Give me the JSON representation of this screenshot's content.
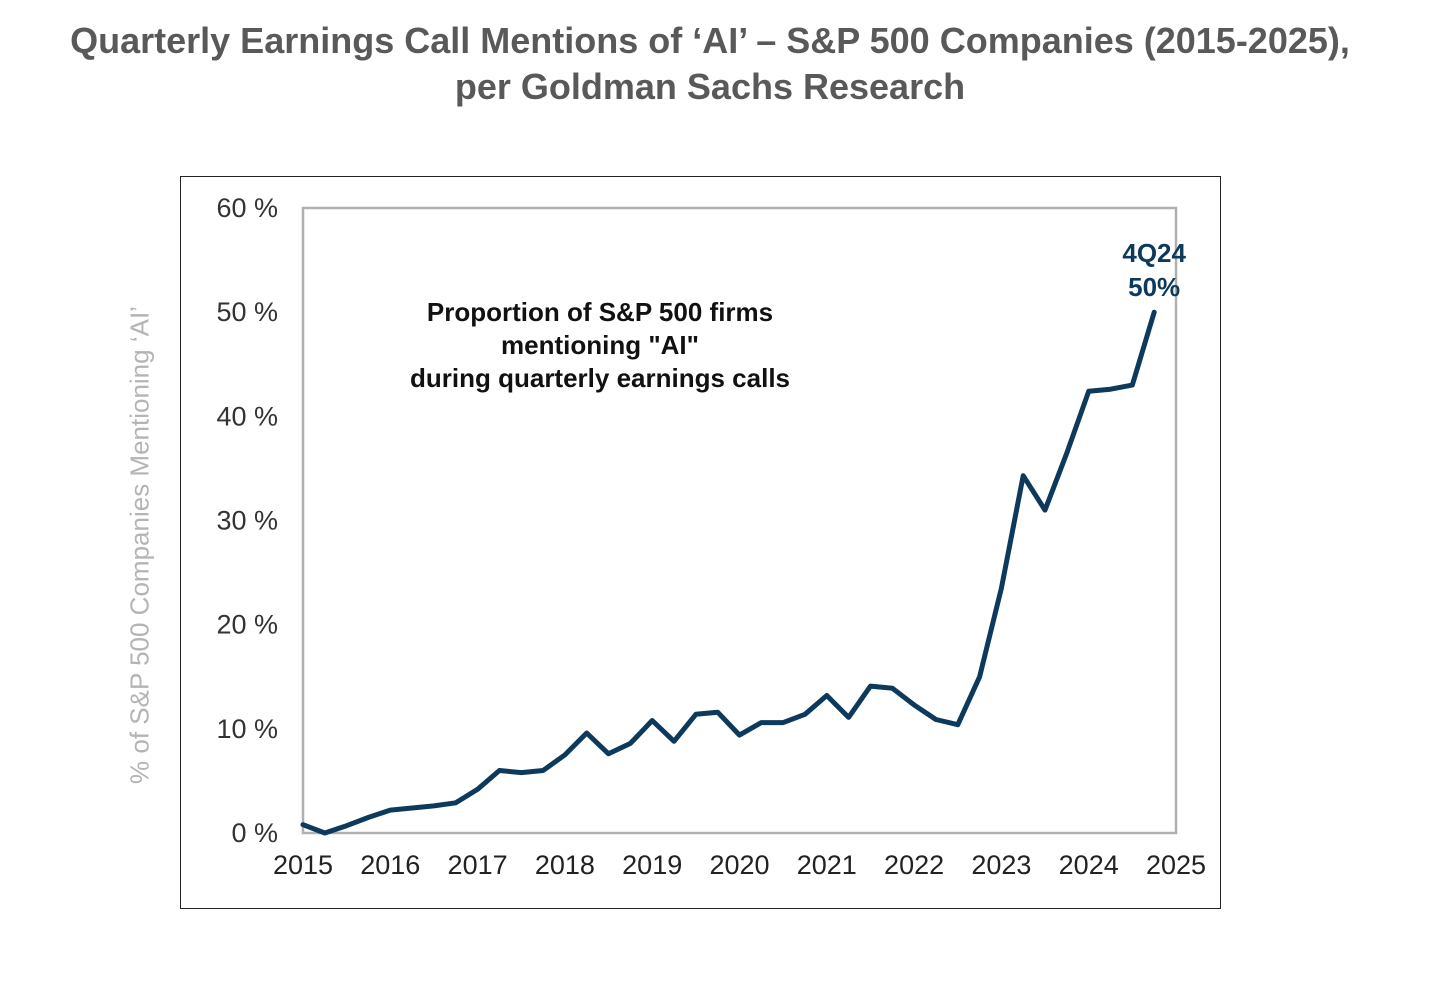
{
  "header": {
    "title_line1": "Quarterly Earnings Call Mentions of ‘AI’ – S&P 500 Companies (2015-2025),",
    "title_line2": "per Goldman Sachs Research"
  },
  "chart_data": {
    "type": "line",
    "ylabel": "% of S&P 500 Companies Mentioning ‘AI’",
    "xlabel": "",
    "xlim": [
      2015,
      2025
    ],
    "ylim": [
      0,
      60
    ],
    "x_ticks": [
      "2015",
      "2016",
      "2017",
      "2018",
      "2019",
      "2020",
      "2021",
      "2022",
      "2023",
      "2024",
      "2025"
    ],
    "y_ticks": [
      "0 %",
      "10 %",
      "20 %",
      "30 %",
      "40 %",
      "50 %",
      "60 %"
    ],
    "grid": false,
    "annotation": {
      "lines": [
        "Proportion of S&P 500 firms",
        "mentioning \"AI\"",
        "during quarterly earnings calls"
      ]
    },
    "point_label": {
      "label": "4Q24",
      "value_text": "50%"
    },
    "series": [
      {
        "color": "#0d3a5c",
        "x": [
          2015.0,
          2015.25,
          2015.5,
          2015.75,
          2016.0,
          2016.25,
          2016.5,
          2016.75,
          2017.0,
          2017.25,
          2017.5,
          2017.75,
          2018.0,
          2018.25,
          2018.5,
          2018.75,
          2019.0,
          2019.25,
          2019.5,
          2019.75,
          2020.0,
          2020.25,
          2020.5,
          2020.75,
          2021.0,
          2021.25,
          2021.5,
          2021.75,
          2022.0,
          2022.25,
          2022.5,
          2022.75,
          2023.0,
          2023.25,
          2023.5,
          2023.75,
          2024.0,
          2024.25,
          2024.5,
          2024.75
        ],
        "values": [
          0.8,
          0.0,
          0.7,
          1.5,
          2.2,
          2.4,
          2.6,
          2.9,
          4.2,
          6.0,
          5.8,
          6.0,
          7.5,
          9.6,
          7.6,
          8.6,
          10.8,
          8.8,
          11.4,
          11.6,
          9.4,
          10.6,
          10.6,
          11.4,
          13.2,
          11.1,
          14.1,
          13.9,
          12.3,
          10.9,
          10.4,
          15.0,
          23.5,
          34.3,
          31.0,
          36.5,
          42.4,
          42.6,
          43.0,
          50.0
        ]
      }
    ]
  }
}
